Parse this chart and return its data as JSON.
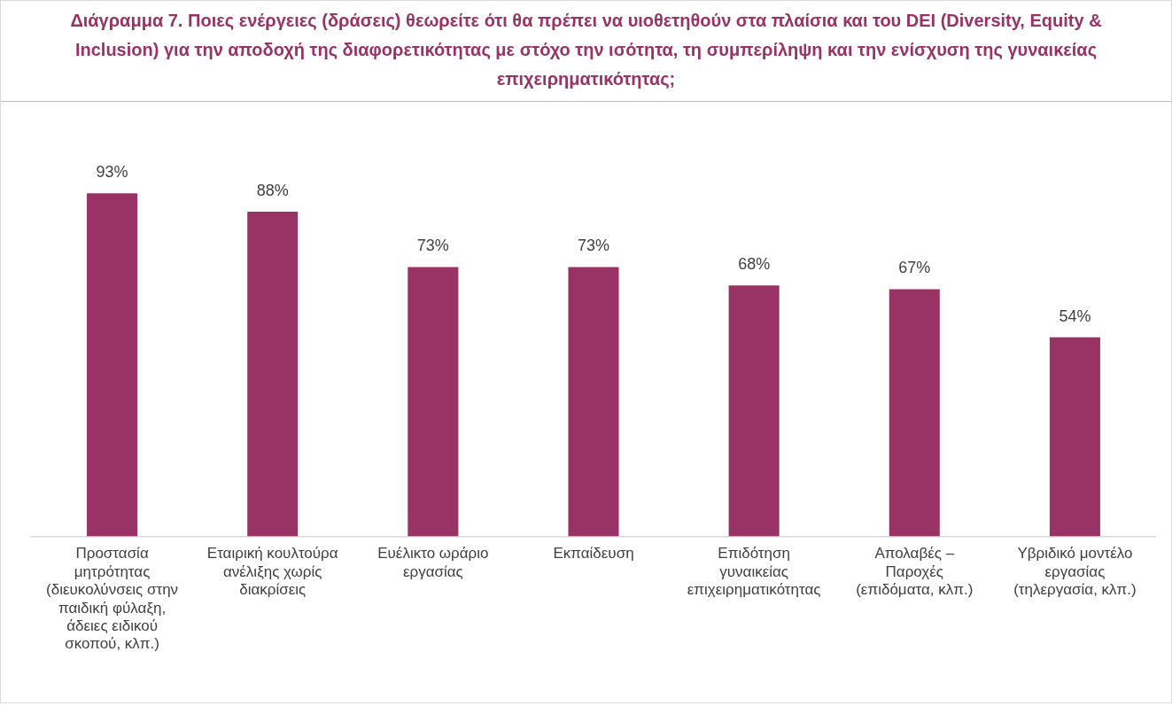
{
  "chart_data": {
    "type": "bar",
    "title": "Διάγραμμα 7. Ποιες ενέργειες (δράσεις) θεωρείτε ότι θα πρέπει να υιοθετηθούν στα πλαίσια και του DEI (Diversity, Equity & Inclusion) για την αποδοχή της διαφορετικότητας με στόχο την ισότητα, τη συμπερίληψη και την ενίσχυση της γυναικείας επιχειρηματικότητας;",
    "categories": [
      "Προστασία μητρότητας (διευκολύνσεις στην παιδική φύλαξη, άδειες ειδικού σκοπού, κλπ.)",
      "Εταιρική κουλτούρα ανέλιξης χωρίς διακρίσεις",
      "Ευέλικτο ωράριο εργασίας",
      "Εκπαίδευση",
      "Επιδότηση γυναικείας επιχειρηματικότητας",
      "Απολαβές – Παροχές (επιδόματα, κλπ.)",
      "Υβριδικό μοντέλο εργασίας (τηλεργασία, κλπ.)"
    ],
    "values": [
      93,
      88,
      73,
      73,
      68,
      67,
      54
    ],
    "value_labels": [
      "93%",
      "88%",
      "73%",
      "73%",
      "68%",
      "67%",
      "54%"
    ],
    "color": "#993366",
    "tick_labels": "x",
    "grid": false,
    "legend": false
  }
}
